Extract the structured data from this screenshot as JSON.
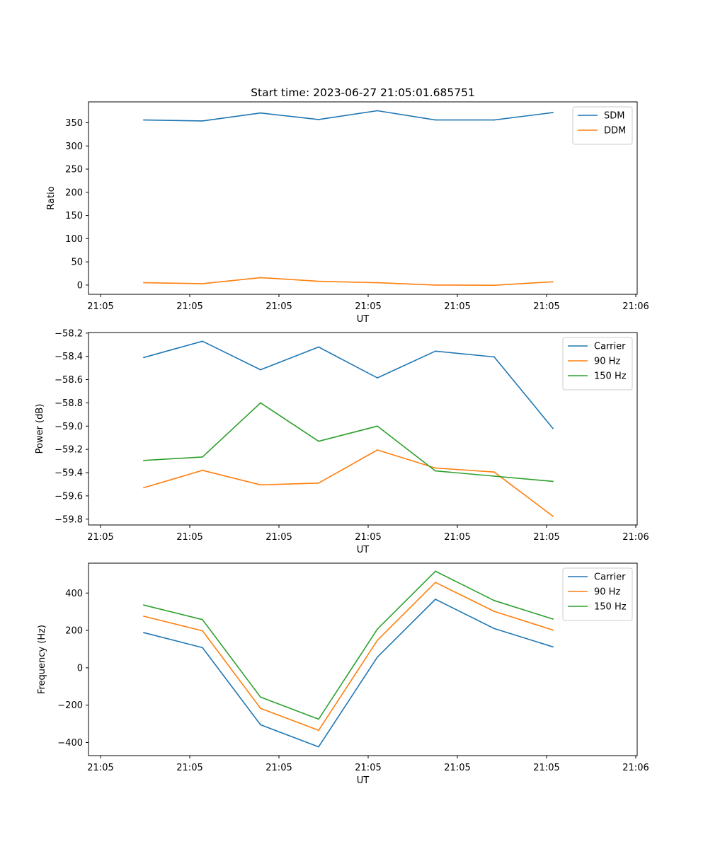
{
  "figure": {
    "title": "Start time: 2023-06-27 21:05:01.685751"
  },
  "colors": {
    "blue": "#1f77b4",
    "orange": "#ff7f0e",
    "green": "#2ca02c",
    "axis": "#000000",
    "legend_border": "#cccccc"
  },
  "chart_data": [
    {
      "type": "line",
      "title": "Start time: 2023-06-27 21:05:01.685751",
      "xlabel": "UT",
      "ylabel": "Ratio",
      "x_tick_labels": [
        "21:05",
        "21:05",
        "21:05",
        "21:05",
        "21:05",
        "21:05",
        "21:06"
      ],
      "x_points": 8,
      "yticks": [
        0,
        50,
        100,
        150,
        200,
        250,
        300,
        350
      ],
      "ytick_labels": [
        "0",
        "50",
        "100",
        "150",
        "200",
        "250",
        "300",
        "350"
      ],
      "ylim": [
        -20,
        395
      ],
      "grid": false,
      "legend_position": "top-right",
      "series": [
        {
          "name": "SDM",
          "color": "#1f77b4",
          "values": [
            356,
            354,
            371,
            357,
            376,
            356,
            356,
            372
          ]
        },
        {
          "name": "DDM",
          "color": "#ff7f0e",
          "values": [
            5,
            3,
            16,
            8,
            5,
            0,
            -0.5,
            7
          ]
        }
      ]
    },
    {
      "type": "line",
      "title": "",
      "xlabel": "UT",
      "ylabel": "Power (dB)",
      "x_tick_labels": [
        "21:05",
        "21:05",
        "21:05",
        "21:05",
        "21:05",
        "21:05",
        "21:06"
      ],
      "x_points": 8,
      "yticks": [
        -59.8,
        -59.6,
        -59.4,
        -59.2,
        -59.0,
        -58.8,
        -58.6,
        -58.4,
        -58.2
      ],
      "ytick_labels": [
        "−59.8",
        "−59.6",
        "−59.4",
        "−59.2",
        "−59.0",
        "−58.8",
        "−58.6",
        "−58.4",
        "−58.2"
      ],
      "ylim": [
        -59.85,
        -58.195
      ],
      "grid": false,
      "legend_position": "top-right",
      "series": [
        {
          "name": "Carrier",
          "color": "#1f77b4",
          "values": [
            -58.41,
            -58.27,
            -58.515,
            -58.32,
            -58.585,
            -58.355,
            -58.405,
            -59.02
          ]
        },
        {
          "name": "90 Hz",
          "color": "#ff7f0e",
          "values": [
            -59.53,
            -59.38,
            -59.505,
            -59.49,
            -59.205,
            -59.36,
            -59.395,
            -59.775
          ]
        },
        {
          "name": "150 Hz",
          "color": "#2ca02c",
          "values": [
            -59.295,
            -59.265,
            -58.8,
            -59.13,
            -59.0,
            -59.385,
            -59.43,
            -59.475
          ]
        }
      ]
    },
    {
      "type": "line",
      "title": "",
      "xlabel": "UT",
      "ylabel": "Frequency (Hz)",
      "x_tick_labels": [
        "21:05",
        "21:05",
        "21:05",
        "21:05",
        "21:05",
        "21:05",
        "21:06"
      ],
      "x_points": 8,
      "yticks": [
        -400,
        -200,
        0,
        200,
        400
      ],
      "ytick_labels": [
        "−400",
        "−200",
        "0",
        "200",
        "400"
      ],
      "ylim": [
        -470,
        560
      ],
      "grid": false,
      "legend_position": "top-right",
      "series": [
        {
          "name": "Carrier",
          "color": "#1f77b4",
          "values": [
            188,
            108,
            -305,
            -423,
            57,
            367,
            210,
            112
          ]
        },
        {
          "name": "90 Hz",
          "color": "#ff7f0e",
          "values": [
            276,
            198,
            -217,
            -335,
            147,
            457,
            302,
            202
          ]
        },
        {
          "name": "150 Hz",
          "color": "#2ca02c",
          "values": [
            336,
            258,
            -157,
            -275,
            207,
            517,
            360,
            261
          ]
        }
      ]
    }
  ]
}
